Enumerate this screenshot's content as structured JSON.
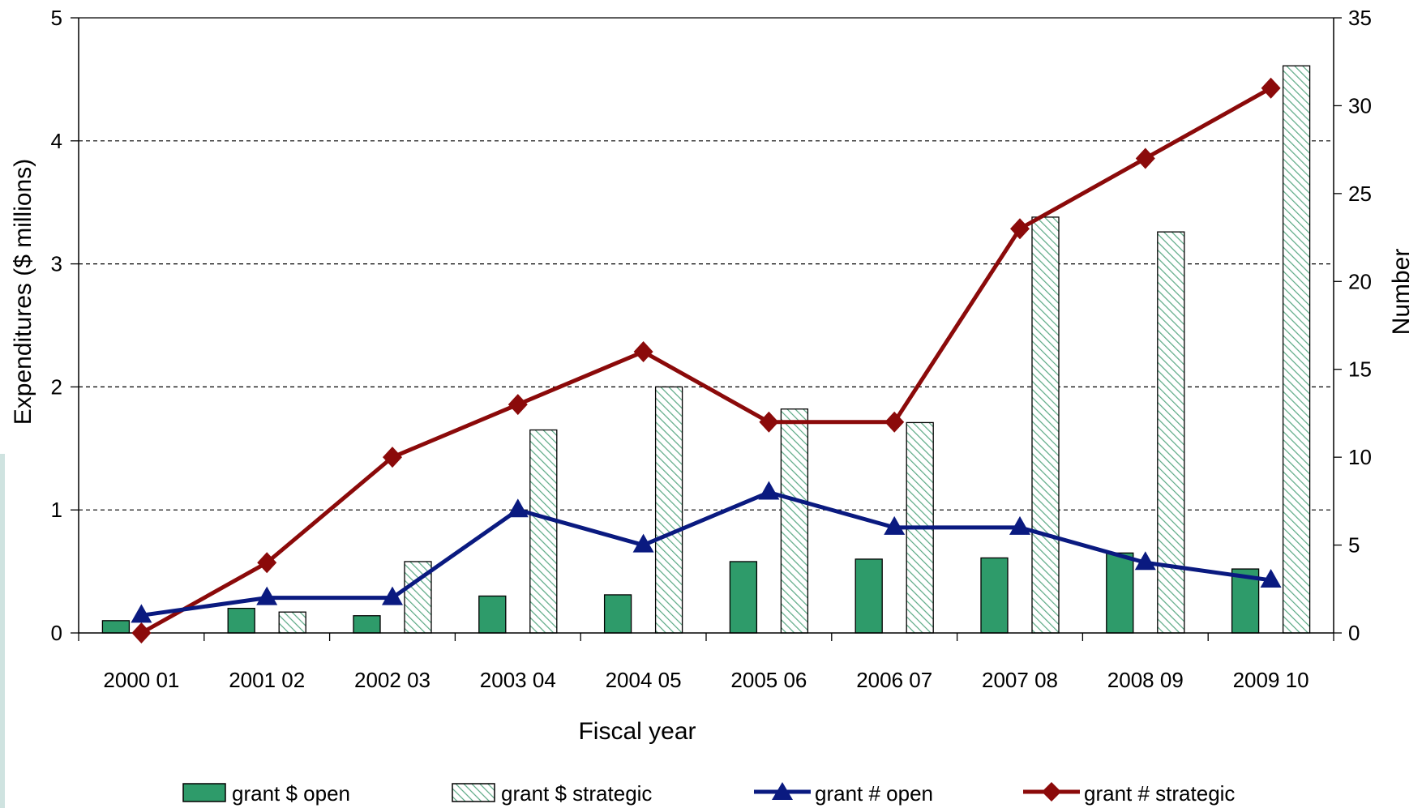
{
  "chart_data": {
    "type": "bar",
    "title": "",
    "xlabel": "Fiscal year",
    "ylabel": "Expenditures ($ millions)",
    "y2label": "Number",
    "ylim": [
      0,
      5
    ],
    "y2lim": [
      0,
      35
    ],
    "yticks": [
      "0",
      "1",
      "2",
      "3",
      "4",
      "5"
    ],
    "y2ticks": [
      "0",
      "5",
      "10",
      "15",
      "20",
      "25",
      "30",
      "35"
    ],
    "grid": "horizontal dashed",
    "legend_position": "bottom",
    "categories": [
      "2000 01",
      "2001 02",
      "2002 03",
      "2003 04",
      "2004 05",
      "2005 06",
      "2006 07",
      "2007 08",
      "2008 09",
      "2009 10"
    ],
    "series": [
      {
        "name": "grant $ open",
        "type": "bar",
        "axis": "left",
        "color": "#2e9b6a",
        "values": [
          0.1,
          0.2,
          0.14,
          0.3,
          0.31,
          0.58,
          0.6,
          0.61,
          0.65,
          0.52
        ]
      },
      {
        "name": "grant $ strategic",
        "type": "bar",
        "axis": "left",
        "color": "#6fb89a",
        "pattern": "diagonal-hatch",
        "values": [
          0,
          0.17,
          0.58,
          1.65,
          2.0,
          1.82,
          1.71,
          3.38,
          3.26,
          4.61
        ]
      },
      {
        "name": "grant # open",
        "type": "line",
        "axis": "right",
        "color": "#0a1a80",
        "marker": "triangle",
        "values": [
          1,
          2,
          2,
          7,
          5,
          8,
          6,
          6,
          4,
          3
        ]
      },
      {
        "name": "grant # strategic",
        "type": "line",
        "axis": "right",
        "color": "#8b0a0a",
        "marker": "diamond",
        "values": [
          0,
          4,
          10,
          13,
          16,
          12,
          12,
          23,
          27,
          31
        ]
      }
    ]
  }
}
